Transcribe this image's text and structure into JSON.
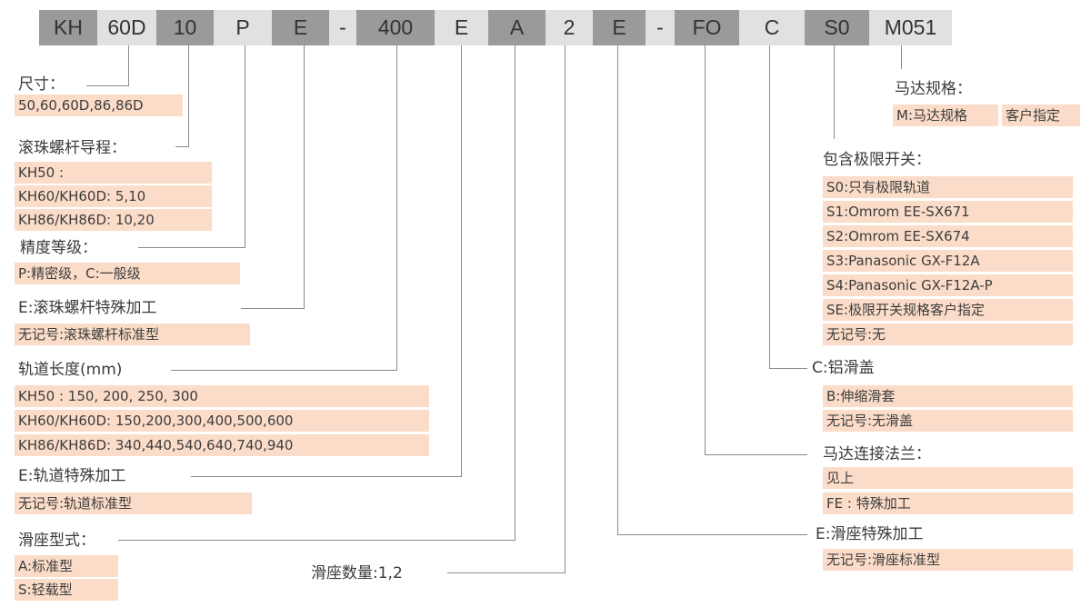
{
  "code_segments": [
    "KH",
    "60D",
    "10",
    "P",
    "E",
    "-",
    "400",
    "E",
    "A",
    "2",
    "E",
    "-",
    "FO",
    "C",
    "S0",
    "M051"
  ],
  "colors": {
    "highlight": "#fbdcc8",
    "segment_dark": "#9a9a9a",
    "segment_light": "#e1e1e1",
    "line": "#8a8a8a"
  },
  "size": {
    "label": "尺寸：",
    "options": [
      "50,60,60D,86,86D"
    ]
  },
  "lead": {
    "label": "滚珠螺杆导程：",
    "options": [
      "KH50 :",
      "KH60/KH60D: 5,10",
      "KH86/KH86D: 10,20"
    ]
  },
  "precision": {
    "label": "精度等级：",
    "options": [
      "P:精密级，C:一般级"
    ]
  },
  "screw_special": {
    "label": "E:滚珠螺杆特殊加工",
    "options": [
      "无记号:滚珠螺杆标准型"
    ]
  },
  "rail_length": {
    "label": "轨道长度(mm)",
    "options": [
      "KH50 : 150, 200, 250, 300",
      "KH60/KH60D: 150,200,300,400,500,600",
      "KH86/KH86D: 340,440,540,640,740,940"
    ]
  },
  "rail_special": {
    "label": "E:轨道特殊加工",
    "options": [
      "无记号:轨道标准型"
    ]
  },
  "slider_type": {
    "label": "滑座型式：",
    "options": [
      "A:标准型",
      "S:轻载型"
    ]
  },
  "slider_count": {
    "label": "滑座数量:1,2"
  },
  "motor_spec": {
    "label": "马达规格：",
    "options": [
      "M:马达规格",
      "客户指定"
    ]
  },
  "limit_switch": {
    "label": "包含极限开关：",
    "options": [
      "S0:只有极限轨道",
      "S1:Omrom EE-SX671",
      "S2:Omrom EE-SX674",
      "S3:Panasonic GX-F12A",
      "S4:Panasonic GX-F12A-P",
      "SE:极限开关规格客户指定",
      "无记号:无"
    ]
  },
  "cover": {
    "label": "C:铝滑盖",
    "options": [
      "B:伸缩滑套",
      "无记号:无滑盖"
    ]
  },
  "motor_flange": {
    "label": "马达连接法兰：",
    "options": [
      "见上",
      "FE : 特殊加工"
    ]
  },
  "slider_special": {
    "label": "E:滑座特殊加工",
    "options": [
      "无记号:滑座标准型"
    ]
  }
}
